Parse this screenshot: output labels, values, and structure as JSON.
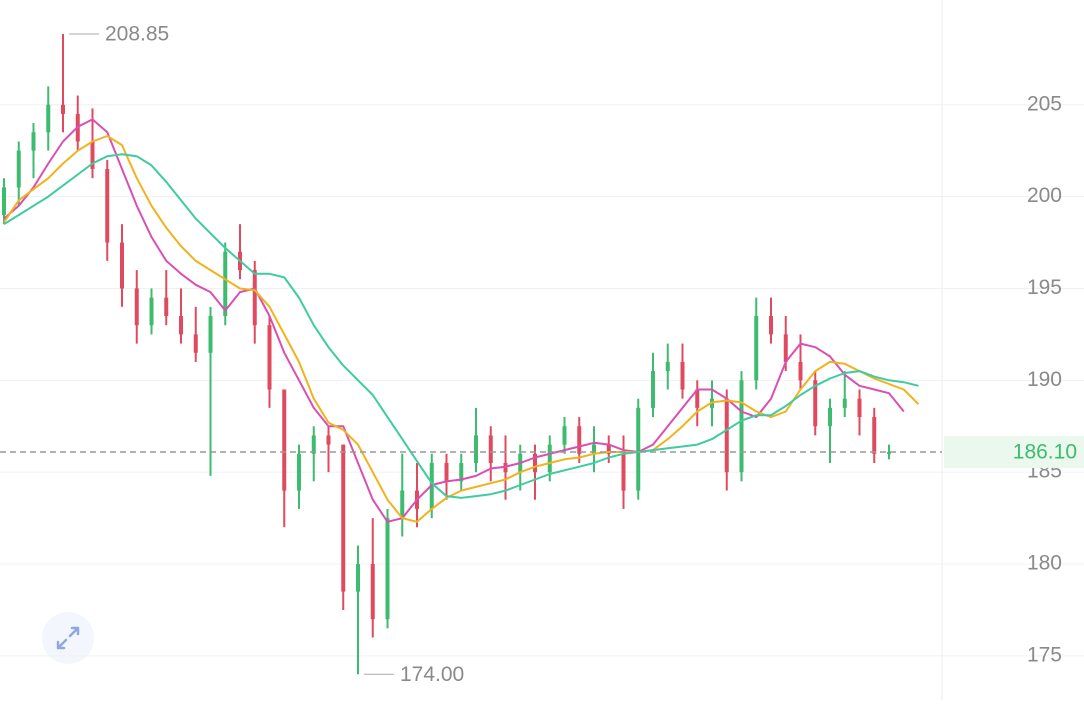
{
  "chart_data": {
    "type": "ohlc",
    "ylim": [
      172.6,
      210.7
    ],
    "yticks": [
      175,
      180,
      185,
      190,
      195,
      200,
      205
    ],
    "up_color": "#3dbb6e",
    "down_color": "#e04a5f",
    "grid": true,
    "open": [
      199,
      200.5,
      202.5,
      203.5,
      205,
      204.5,
      203,
      201.5,
      197.5,
      195,
      193,
      194.5,
      193.5,
      192.5,
      191.5,
      193.5,
      197,
      196,
      193,
      189.5,
      184,
      186,
      187,
      186.5,
      178.5,
      180,
      177,
      182.5,
      184,
      183,
      185.5,
      184.5,
      185.5,
      187,
      185.5,
      185,
      186,
      185,
      186.5,
      187.5,
      186,
      186.5,
      186,
      184,
      188.5,
      190.5,
      191,
      189.5,
      188.5,
      189,
      185,
      190,
      193.5,
      192.5,
      191,
      190,
      187.5,
      188.5,
      189,
      188,
      186,
      null,
      null
    ],
    "high": [
      201,
      203,
      204,
      206,
      208.85,
      205.5,
      204.8,
      202,
      198.5,
      196,
      195,
      196,
      195,
      194,
      194,
      197.5,
      198.5,
      196.5,
      193.5,
      189.5,
      186.5,
      187.5,
      187.5,
      186.5,
      181,
      182.5,
      183,
      186,
      185.5,
      186,
      186,
      186,
      188.5,
      187.5,
      187,
      186.5,
      186.5,
      187,
      188,
      188,
      187.5,
      187,
      187,
      189,
      191.5,
      192,
      192,
      190,
      190,
      189.5,
      190.5,
      194.5,
      194.5,
      193.5,
      192.5,
      190.5,
      189,
      190.5,
      189.5,
      188.5,
      186.5,
      null,
      null
    ],
    "low": [
      198.5,
      199.5,
      201,
      202.5,
      203.5,
      202.5,
      201,
      196.5,
      194,
      192,
      192.5,
      193,
      192,
      191,
      184.8,
      193,
      195.5,
      192,
      188.5,
      182,
      183,
      184.5,
      185,
      177.5,
      174,
      176,
      176.5,
      181.5,
      182,
      182.5,
      183.5,
      184,
      185,
      184.5,
      183.5,
      184,
      183.5,
      184.5,
      186,
      185.5,
      185,
      185.5,
      183,
      183.5,
      188,
      189.5,
      189,
      187.5,
      187.5,
      184,
      184.5,
      189.5,
      192,
      190.5,
      189.5,
      187,
      185.5,
      188,
      187,
      185.5,
      185.7,
      null,
      null
    ],
    "close": [
      200.5,
      202.5,
      203.5,
      205,
      204.5,
      203,
      201.5,
      197.5,
      195,
      193,
      194.5,
      193.5,
      192.5,
      191.5,
      193.5,
      197,
      196,
      193,
      189.5,
      184,
      186,
      187,
      186.5,
      178.5,
      180,
      177,
      182.5,
      184,
      183,
      185.5,
      184.5,
      185.5,
      187,
      185.5,
      185,
      186,
      185,
      186.5,
      187.5,
      186,
      186.5,
      186,
      184,
      188.5,
      190.5,
      191,
      189.5,
      188.5,
      189,
      185,
      190,
      193.5,
      192.5,
      191,
      190,
      187.5,
      188.5,
      189,
      188,
      186,
      186.1,
      null,
      null
    ],
    "ma": [
      {
        "color": "#d94fb3",
        "values": [
          198.8,
          199.5,
          200.5,
          201.8,
          203,
          203.8,
          204.2,
          203.5,
          201.5,
          199.5,
          197.8,
          196.5,
          195.8,
          195.2,
          194.8,
          193.8,
          194.8,
          195,
          193.5,
          191.5,
          190,
          188.5,
          187.5,
          187.5,
          185.5,
          183.5,
          182.3,
          182.5,
          183.5,
          184.3,
          184.5,
          184.6,
          184.8,
          185.2,
          185.3,
          185.5,
          185.8,
          186,
          186.2,
          186.4,
          186.6,
          186.5,
          186.2,
          186.1,
          186.5,
          187.5,
          188.5,
          189.5,
          189.5,
          189,
          188.3,
          188,
          189,
          191,
          192,
          191.8,
          191.3,
          190.3,
          189.7,
          189.5,
          189.3,
          188.3,
          null
        ]
      },
      {
        "color": "#f2b21c",
        "values": [
          198.6,
          199.8,
          200.4,
          201,
          201.8,
          202.5,
          203,
          203.3,
          202.8,
          201,
          199.5,
          198.3,
          197.3,
          196.5,
          196,
          195.5,
          195,
          194.9,
          194,
          192.5,
          191,
          189,
          187.7,
          187.3,
          186.5,
          185,
          183.5,
          182.5,
          182.3,
          183,
          183.6,
          184,
          184.2,
          184.4,
          184.6,
          185,
          185.3,
          185.5,
          185.7,
          185.8,
          186,
          186.1,
          186.1,
          186.1,
          186.2,
          186.8,
          187.5,
          188.3,
          188.8,
          188.9,
          188.8,
          188.3,
          188,
          188.3,
          189.5,
          190.5,
          191,
          190.9,
          190.5,
          190.1,
          189.8,
          189.5,
          188.7
        ]
      },
      {
        "color": "#3ecba0",
        "values": [
          198.5,
          199,
          199.5,
          200,
          200.6,
          201.2,
          201.8,
          202.2,
          202.3,
          202.2,
          201.7,
          200.8,
          199.8,
          198.8,
          198,
          197.2,
          196.5,
          195.8,
          195.8,
          195.6,
          194.5,
          193,
          191.8,
          190.8,
          190,
          189.2,
          188,
          186.8,
          185.6,
          184.4,
          183.7,
          183.6,
          183.7,
          183.8,
          184,
          184.3,
          184.6,
          184.9,
          185.1,
          185.3,
          185.5,
          185.8,
          186,
          186.1,
          186.2,
          186.3,
          186.4,
          186.5,
          186.8,
          187.3,
          187.8,
          188.1,
          188.1,
          188.6,
          189.2,
          189.7,
          190.1,
          190.4,
          190.5,
          190.2,
          190,
          189.9,
          189.7
        ]
      }
    ],
    "high_marker": {
      "value": 208.85,
      "label": "208.85"
    },
    "low_marker": {
      "value": 174,
      "label": "174.00"
    },
    "last_price": {
      "value": 186.1,
      "label": "186.10"
    }
  }
}
